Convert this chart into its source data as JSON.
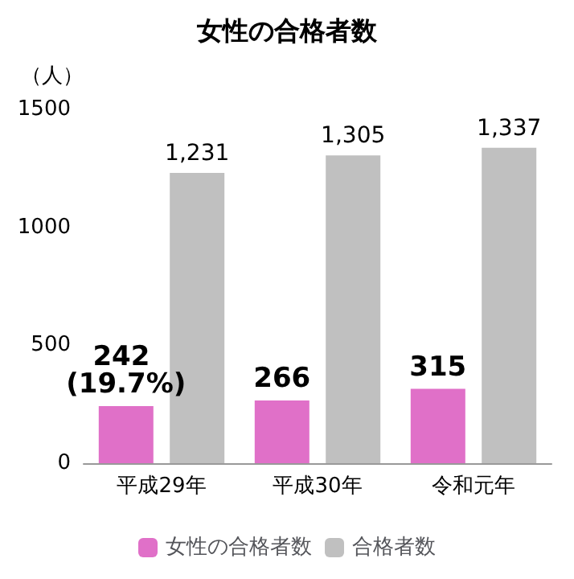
{
  "chart_data": {
    "type": "bar",
    "title": "女性の合格者数",
    "ylabel": "（人）",
    "categories": [
      "平成29年",
      "平成30年",
      "令和元年"
    ],
    "series": [
      {
        "name": "女性の合格者数",
        "color": "#e070c8",
        "values": [
          242,
          266,
          315
        ],
        "value_labels": [
          "242 (19.7%)",
          "266",
          "315"
        ]
      },
      {
        "name": "合格者数",
        "color": "#c0c0c0",
        "values": [
          1231,
          1305,
          1337
        ],
        "value_labels": [
          "1,231",
          "1,305",
          "1,337"
        ]
      }
    ],
    "ylim": [
      0,
      1500
    ],
    "yticks": [
      0,
      500,
      1000,
      1500
    ],
    "grid": false,
    "legend": "bottom"
  }
}
